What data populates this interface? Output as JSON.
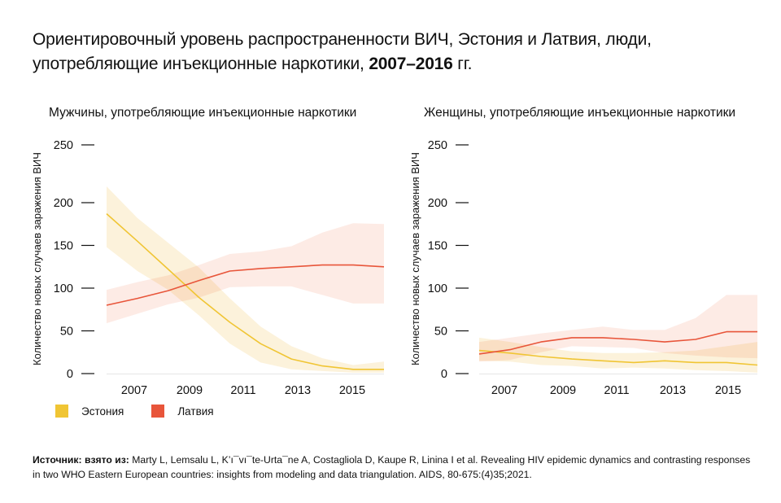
{
  "title": {
    "main": "Ориентировочный уровень распространенности ВИЧ, Эстония и Латвия, люди, употребляющие инъекционные наркотики, ",
    "bold": "2007–2016",
    "suffix": " гг."
  },
  "legend": [
    {
      "label": "Эстония",
      "color": "#f0c534"
    },
    {
      "label": "Латвия",
      "color": "#e8553a"
    }
  ],
  "source": {
    "label": "Источник: взято из:",
    "text": " Marty L, Lemsalu L, K’ı¯vı¯te-Urta¯ne A, Costagliola D, Kaupe R, Linina I et al. Revealing HIV epidemic dynamics and contrasting responses in two WHO Eastern European countries: insights from modeling and data triangulation. AIDS, 80-675:(4)35;2021."
  },
  "colors": {
    "estonia_line": "#f0c534",
    "estonia_band": "#fbefd2",
    "latvia_line": "#e8553a",
    "latvia_band": "#fce6df",
    "axis": "#e6e6e6"
  },
  "chart_data": [
    {
      "type": "line",
      "title": "Мужчины, употребляющие инъекционные наркотики",
      "ylabel": "Количество новых случаев заражения ВИЧ",
      "xlabel": "",
      "x": [
        2007,
        2008,
        2009,
        2010,
        2011,
        2012,
        2013,
        2014,
        2015,
        2016
      ],
      "x_tick_labels": [
        "2007",
        "2009",
        "2011",
        "2013",
        "2015"
      ],
      "y_ticks": [
        0,
        50,
        100,
        150,
        200,
        250
      ],
      "ylim": [
        0,
        250
      ],
      "grid": false,
      "series": [
        {
          "name": "Эстония",
          "values": [
            187,
            155,
            122,
            89,
            60,
            35,
            17,
            9,
            5,
            5
          ],
          "lower": [
            148,
            120,
            98,
            68,
            35,
            13,
            5,
            3,
            1,
            1
          ],
          "upper": [
            219,
            182,
            153,
            124,
            88,
            55,
            32,
            18,
            10,
            14
          ]
        },
        {
          "name": "Латвия",
          "values": [
            80,
            88,
            97,
            109,
            120,
            123,
            125,
            127,
            127,
            125
          ],
          "lower": [
            59,
            70,
            81,
            89,
            101,
            102,
            102,
            92,
            82,
            82
          ],
          "upper": [
            98,
            107,
            115,
            127,
            140,
            143,
            149,
            165,
            176,
            175
          ]
        }
      ]
    },
    {
      "type": "line",
      "title": "Женщины, употребляющие инъекционные наркотики",
      "ylabel": "Количество новых случаев заражения ВИЧ",
      "xlabel": "",
      "x": [
        2007,
        2008,
        2009,
        2010,
        2011,
        2012,
        2013,
        2014,
        2015,
        2016
      ],
      "x_tick_labels": [
        "2007",
        "2009",
        "2011",
        "2013",
        "2015"
      ],
      "y_ticks": [
        0,
        50,
        100,
        150,
        200,
        250
      ],
      "ylim": [
        0,
        250
      ],
      "grid": false,
      "series": [
        {
          "name": "Эстония",
          "values": [
            27,
            24,
            20,
            17,
            15,
            13,
            15,
            13,
            13,
            10
          ],
          "lower": [
            15,
            14,
            10,
            9,
            6,
            7,
            6,
            4,
            3,
            1
          ],
          "upper": [
            42,
            37,
            31,
            26,
            24,
            24,
            25,
            27,
            32,
            37
          ]
        },
        {
          "name": "Латвия",
          "values": [
            23,
            28,
            37,
            42,
            42,
            40,
            37,
            40,
            49,
            49
          ],
          "lower": [
            14,
            16,
            25,
            32,
            31,
            30,
            24,
            21,
            19,
            18
          ],
          "upper": [
            37,
            42,
            47,
            51,
            55,
            51,
            51,
            65,
            92,
            92
          ]
        }
      ]
    }
  ]
}
